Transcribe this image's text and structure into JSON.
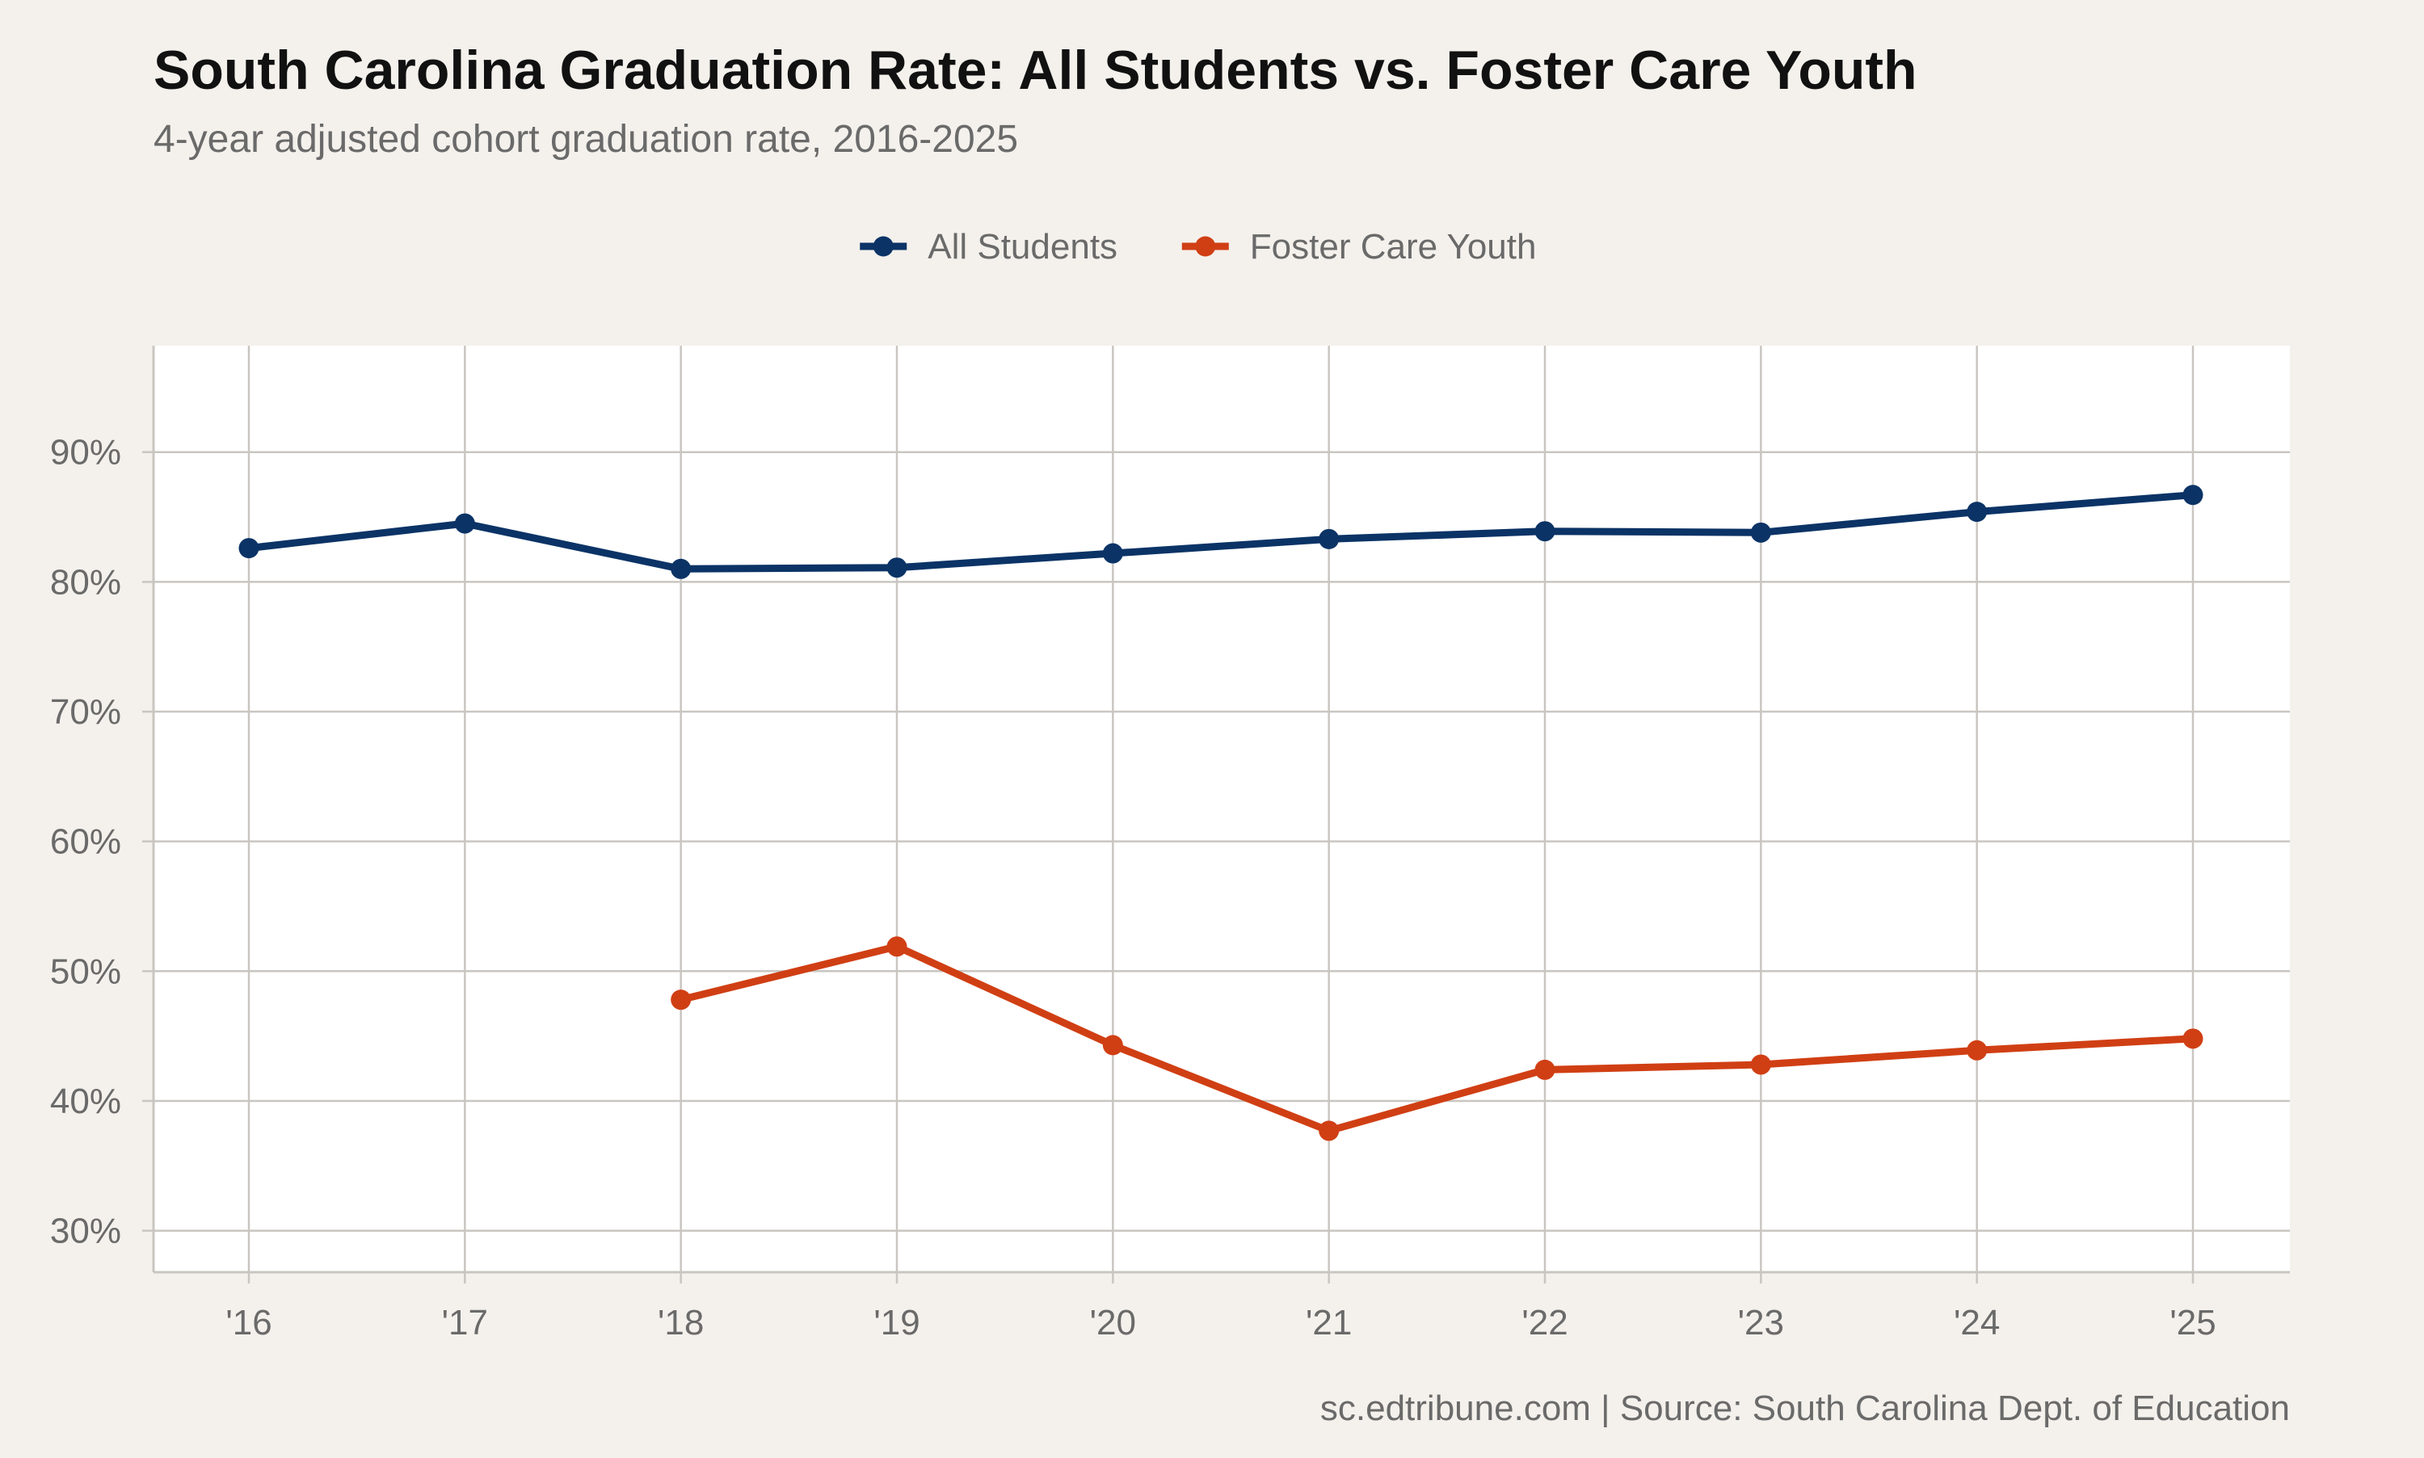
{
  "chart_data": {
    "type": "line",
    "title": "South Carolina Graduation Rate: All Students vs. Foster Care Youth",
    "subtitle": "4-year adjusted cohort graduation rate, 2016-2025",
    "caption": "sc.edtribune.com | Source: South Carolina Dept. of Education",
    "x": [
      "'16",
      "'17",
      "'18",
      "'19",
      "'20",
      "'21",
      "'22",
      "'23",
      "'24",
      "'25"
    ],
    "y_ticks": [
      30,
      40,
      50,
      60,
      70,
      80,
      90
    ],
    "y_tick_labels": [
      "30%",
      "40%",
      "50%",
      "60%",
      "70%",
      "80%",
      "90%"
    ],
    "ylim": [
      26.8,
      98.2
    ],
    "grid": true,
    "legend_position": "top",
    "series": [
      {
        "name": "All Students",
        "color": "#0b3366",
        "values": [
          82.6,
          84.5,
          81.0,
          81.1,
          82.2,
          83.3,
          83.9,
          83.8,
          85.4,
          86.7
        ]
      },
      {
        "name": "Foster Care Youth",
        "color": "#d03f14",
        "values": [
          null,
          null,
          47.8,
          51.9,
          44.3,
          37.7,
          42.4,
          42.8,
          43.9,
          44.8
        ]
      }
    ]
  },
  "colors": {
    "background": "#f4f1ec",
    "panel": "#ffffff",
    "grid": "#c9c6c1",
    "title": "#111111",
    "muted_text": "#6a6a6a"
  }
}
